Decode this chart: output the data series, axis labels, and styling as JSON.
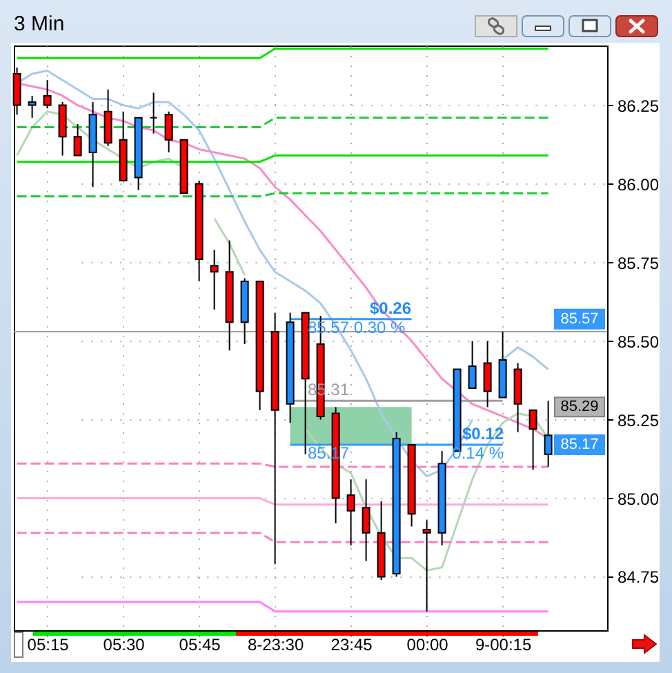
{
  "chart_data": {
    "type": "candlestick",
    "title": "3 Min",
    "categories": [
      null,
      null,
      "05:15",
      null,
      null,
      null,
      null,
      "05:30",
      null,
      null,
      null,
      null,
      "05:45",
      null,
      null,
      null,
      null,
      "8-23:30",
      null,
      null,
      null,
      null,
      "23:45",
      null,
      null,
      null,
      null,
      "00:00",
      null,
      null,
      null,
      null,
      "9-00:15",
      null,
      null,
      null
    ],
    "ohlc": [
      [
        86.35,
        86.37,
        86.22,
        86.25
      ],
      [
        86.25,
        86.28,
        86.21,
        86.26
      ],
      [
        86.28,
        86.33,
        86.24,
        86.25
      ],
      [
        86.25,
        86.26,
        86.09,
        86.15
      ],
      [
        86.15,
        86.19,
        86.09,
        86.09
      ],
      [
        86.1,
        86.26,
        85.99,
        86.22
      ],
      [
        86.23,
        86.3,
        86.12,
        86.13
      ],
      [
        86.14,
        86.23,
        86.01,
        86.01
      ],
      [
        86.02,
        86.21,
        85.98,
        86.21
      ],
      [
        86.21,
        86.29,
        86.16,
        86.21
      ],
      [
        86.22,
        86.23,
        86.1,
        86.14
      ],
      [
        86.14,
        86.14,
        85.97,
        85.97
      ],
      [
        86.0,
        86.01,
        85.69,
        85.76
      ],
      [
        85.74,
        85.79,
        85.6,
        85.72
      ],
      [
        85.72,
        85.82,
        85.47,
        85.56
      ],
      [
        85.56,
        85.7,
        85.49,
        85.69
      ],
      [
        85.69,
        85.69,
        85.28,
        85.34
      ],
      [
        85.53,
        85.59,
        84.79,
        85.28
      ],
      [
        85.3,
        85.59,
        85.24,
        85.56
      ],
      [
        85.59,
        85.59,
        85.14,
        85.38
      ],
      [
        85.49,
        85.58,
        85.25,
        85.26
      ],
      [
        85.27,
        85.29,
        84.92,
        85.0
      ],
      [
        85.01,
        85.06,
        84.85,
        84.96
      ],
      [
        84.97,
        85.06,
        84.8,
        84.89
      ],
      [
        84.89,
        84.99,
        84.74,
        84.75
      ],
      [
        84.76,
        85.21,
        84.75,
        85.19
      ],
      [
        85.17,
        85.17,
        84.91,
        84.95
      ],
      [
        84.9,
        84.93,
        84.64,
        84.89
      ],
      [
        84.89,
        85.15,
        84.85,
        85.11
      ],
      [
        85.15,
        85.41,
        85.15,
        85.41
      ],
      [
        85.35,
        85.5,
        85.35,
        85.42
      ],
      [
        85.43,
        85.5,
        85.29,
        85.34
      ],
      [
        85.32,
        85.53,
        85.32,
        85.44
      ],
      [
        85.41,
        85.43,
        85.21,
        85.3
      ],
      [
        85.28,
        85.28,
        85.09,
        85.22
      ],
      [
        85.14,
        85.31,
        85.1,
        85.2
      ]
    ],
    "colors": [
      "#ff0000",
      "#1e8cff",
      "#ff0000",
      "#ff0000",
      "#ff0000",
      "#1e8cff",
      "#ff0000",
      "#ff0000",
      "#1e8cff",
      "#000000",
      "#ff0000",
      "#ff0000",
      "#ff0000",
      "#ff0000",
      "#ff0000",
      "#1e8cff",
      "#ff0000",
      "#ff0000",
      "#1e8cff",
      "#ff0000",
      "#ff0000",
      "#ff0000",
      "#ff0000",
      "#ff0000",
      "#ff0000",
      "#1e8cff",
      "#ff0000",
      "#ff0000",
      "#1e8cff",
      "#1e8cff",
      "#1e8cff",
      "#ff0000",
      "#1e8cff",
      "#ff0000",
      "#ff0000",
      "#1e8cff"
    ],
    "series": [
      {
        "type": "line",
        "color": "#8fd1a9",
        "values": [
          null,
          null,
          null,
          null,
          null,
          null,
          null,
          null,
          null,
          null,
          null,
          null,
          null,
          null,
          null,
          null,
          null,
          null,
          null,
          null,
          null,
          null,
          null,
          null,
          null,
          null,
          null,
          null,
          null,
          null,
          null,
          null,
          null,
          null,
          null,
          null
        ],
        "lower": [
          null,
          null,
          null,
          null,
          null,
          null,
          null,
          null,
          null,
          null,
          null,
          null,
          null,
          null,
          null,
          null,
          null,
          null,
          85.17,
          85.17,
          85.17,
          85.17,
          85.17,
          85.17,
          85.17,
          85.17,
          85.17,
          null,
          null,
          null,
          null,
          null,
          null,
          null,
          null,
          null
        ],
        "upper": [
          null,
          null,
          null,
          null,
          null,
          null,
          null,
          null,
          null,
          null,
          null,
          null,
          null,
          null,
          null,
          null,
          null,
          null,
          85.29,
          85.29,
          85.29,
          85.29,
          85.29,
          85.29,
          85.29,
          85.29,
          85.29,
          null,
          null,
          null,
          null,
          null,
          null,
          null,
          null,
          null
        ]
      },
      {
        "type": "line",
        "color": "#a8c8ee",
        "values": [
          86.32,
          86.35,
          86.36,
          86.33,
          86.3,
          86.27,
          86.27,
          86.25,
          86.24,
          86.26,
          86.26,
          86.22,
          86.17,
          86.08,
          85.98,
          85.88,
          85.79,
          85.72,
          85.69,
          85.66,
          85.62,
          85.55,
          85.47,
          85.38,
          85.27,
          85.19,
          85.12,
          85.07,
          85.09,
          85.16,
          85.25,
          null,
          85.44,
          85.48,
          85.45,
          85.41
        ]
      },
      {
        "type": "line",
        "color": "#f98cc8",
        "values": [
          86.32,
          86.31,
          86.3,
          86.28,
          86.25,
          86.23,
          86.21,
          86.2,
          86.18,
          86.17,
          86.14,
          86.13,
          86.11,
          86.1,
          86.09,
          86.08,
          86.05,
          85.99,
          85.95,
          85.9,
          85.85,
          85.79,
          85.73,
          85.67,
          85.6,
          85.55,
          85.5,
          85.44,
          85.38,
          85.34,
          85.3,
          85.28,
          85.26,
          85.24,
          85.22,
          85.19
        ]
      },
      {
        "type": "line",
        "color": "#b4d8b4",
        "values": [
          86.09,
          86.18,
          86.23,
          86.22,
          86.18,
          86.14,
          86.11,
          86.08,
          86.05,
          86.07,
          86.08,
          86.05,
          null,
          85.89,
          85.81,
          85.71,
          null,
          null,
          null,
          85.22,
          85.16,
          85.11,
          85.08,
          84.97,
          84.88,
          84.81,
          84.81,
          84.77,
          84.78,
          84.92,
          85.06,
          85.17,
          85.24,
          85.27,
          85.26,
          85.19
        ]
      },
      {
        "type": "line",
        "color": "#00e600",
        "values": [
          86.4,
          86.4,
          86.4,
          86.4,
          86.4,
          86.4,
          86.4,
          86.4,
          86.4,
          86.4,
          86.4,
          86.4,
          86.4,
          86.4,
          86.4,
          86.4,
          86.4,
          86.43,
          86.43,
          86.43,
          86.43,
          86.43,
          86.43,
          86.43,
          86.43,
          86.43,
          86.43,
          86.43,
          86.43,
          86.43,
          86.43,
          86.43,
          86.43,
          86.43,
          86.43,
          86.43
        ]
      },
      {
        "type": "line",
        "color": "#1fc83c",
        "line_style": "dashed",
        "values": [
          86.18,
          86.18,
          86.18,
          86.18,
          86.18,
          86.18,
          86.18,
          86.18,
          86.18,
          86.18,
          86.18,
          86.18,
          86.18,
          86.18,
          86.18,
          86.18,
          86.18,
          86.21,
          86.21,
          86.21,
          86.21,
          86.21,
          86.21,
          86.21,
          86.21,
          86.21,
          86.21,
          86.21,
          86.21,
          86.21,
          86.21,
          86.21,
          86.21,
          86.21,
          86.21,
          86.21
        ]
      },
      {
        "type": "line",
        "color": "#00e600",
        "values": [
          86.07,
          86.07,
          86.07,
          86.07,
          86.07,
          86.07,
          86.07,
          86.07,
          86.07,
          86.07,
          86.07,
          86.07,
          86.07,
          86.07,
          86.07,
          86.07,
          86.07,
          86.09,
          86.09,
          86.09,
          86.09,
          86.09,
          86.09,
          86.09,
          86.09,
          86.09,
          86.09,
          86.09,
          86.09,
          86.09,
          86.09,
          86.09,
          86.09,
          86.09,
          86.09,
          86.09
        ]
      },
      {
        "type": "line",
        "color": "#1fc83c",
        "line_style": "dashed",
        "values": [
          85.96,
          85.96,
          85.96,
          85.96,
          85.96,
          85.96,
          85.96,
          85.96,
          85.96,
          85.96,
          85.96,
          85.96,
          85.96,
          85.96,
          85.96,
          85.96,
          85.96,
          85.97,
          85.97,
          85.97,
          85.97,
          85.97,
          85.97,
          85.97,
          85.97,
          85.97,
          85.97,
          85.97,
          85.97,
          85.97,
          85.97,
          85.97,
          85.97,
          85.97,
          85.97,
          85.97
        ]
      },
      {
        "type": "line",
        "color": "#ff7fc0",
        "line_style": "dashed",
        "values": [
          85.11,
          85.11,
          85.11,
          85.11,
          85.11,
          85.11,
          85.11,
          85.11,
          85.11,
          85.11,
          85.11,
          85.11,
          85.11,
          85.11,
          85.11,
          85.11,
          85.11,
          85.1,
          85.1,
          85.1,
          85.1,
          85.1,
          85.1,
          85.1,
          85.1,
          85.1,
          85.1,
          85.1,
          85.1,
          85.1,
          85.1,
          85.1,
          85.1,
          85.1,
          85.1,
          85.1
        ]
      },
      {
        "type": "line",
        "color": "#ffaad6",
        "values": [
          85.0,
          85.0,
          85.0,
          85.0,
          85.0,
          85.0,
          85.0,
          85.0,
          85.0,
          85.0,
          85.0,
          85.0,
          85.0,
          85.0,
          85.0,
          85.0,
          85.0,
          84.98,
          84.98,
          84.98,
          84.98,
          84.98,
          84.98,
          84.98,
          84.98,
          84.98,
          84.98,
          84.98,
          84.98,
          84.98,
          84.98,
          84.98,
          84.98,
          84.98,
          84.98,
          84.98
        ]
      },
      {
        "type": "line",
        "color": "#ff7fc0",
        "line_style": "dashed",
        "values": [
          84.89,
          84.89,
          84.89,
          84.89,
          84.89,
          84.89,
          84.89,
          84.89,
          84.89,
          84.89,
          84.89,
          84.89,
          84.89,
          84.89,
          84.89,
          84.89,
          84.89,
          84.86,
          84.86,
          84.86,
          84.86,
          84.86,
          84.86,
          84.86,
          84.86,
          84.86,
          84.86,
          84.86,
          84.86,
          84.86,
          84.86,
          84.86,
          84.86,
          84.86,
          84.86,
          84.86
        ]
      },
      {
        "type": "line",
        "color": "#ff80ff",
        "values": [
          84.67,
          84.67,
          84.67,
          84.67,
          84.67,
          84.67,
          84.67,
          84.67,
          84.67,
          84.67,
          84.67,
          84.67,
          84.67,
          84.67,
          84.67,
          84.67,
          84.67,
          84.64,
          84.64,
          84.64,
          84.64,
          84.64,
          84.64,
          84.64,
          84.64,
          84.64,
          84.64,
          84.64,
          84.64,
          84.64,
          84.64,
          84.64,
          84.64,
          84.64,
          84.64,
          84.64
        ]
      },
      {
        "type": "line",
        "color": "#3399ff",
        "values": [
          null,
          null,
          null,
          null,
          null,
          null,
          null,
          null,
          null,
          null,
          null,
          null,
          null,
          null,
          null,
          null,
          null,
          null,
          85.57,
          85.57,
          85.57,
          85.57,
          85.57,
          85.57,
          85.57,
          85.57,
          85.57,
          null,
          null,
          null,
          null,
          null,
          null,
          null,
          null,
          null
        ]
      },
      {
        "type": "line",
        "color": "#a0a0a0",
        "values": [
          null,
          null,
          null,
          null,
          null,
          null,
          null,
          null,
          null,
          null,
          null,
          null,
          null,
          null,
          null,
          null,
          null,
          null,
          85.31,
          85.31,
          85.31,
          85.31,
          85.31,
          85.31,
          85.31,
          85.31,
          85.31,
          85.31,
          85.31,
          85.31,
          85.31,
          85.31,
          85.31,
          null,
          null,
          null
        ]
      },
      {
        "type": "line",
        "color": "#3399ff",
        "values": [
          null,
          null,
          null,
          null,
          null,
          null,
          null,
          null,
          null,
          null,
          null,
          null,
          null,
          null,
          null,
          null,
          null,
          null,
          85.17,
          85.17,
          85.17,
          85.17,
          85.17,
          85.17,
          85.17,
          85.17,
          85.17,
          85.17,
          85.17,
          85.17,
          85.17,
          85.17,
          85.17,
          null,
          null,
          null
        ]
      }
    ],
    "ref_lines": [
      {
        "axis": "y",
        "value": 85.53,
        "color": "#a0a0a0"
      }
    ],
    "annotations": [
      {
        "text": "$0.26",
        "y": 85.57
      },
      {
        "text": "85.57 0.30 %",
        "y": 85.57
      },
      {
        "text": "85.31",
        "y": 85.31
      },
      {
        "text": "85.17",
        "y": 85.17
      },
      {
        "text": "$0.12",
        "y": 85.17
      },
      {
        "text": "0.14 %",
        "y": 85.17
      },
      {
        "text": "85.57",
        "y": 85.57
      },
      {
        "text": "85.29",
        "y": 85.29
      },
      {
        "text": "85.17",
        "y": 85.17
      }
    ],
    "ylim": [
      84.58,
      86.44
    ],
    "yticks": [
      84.75,
      {
        "value": 85,
        "label": "85.00"
      },
      85.25,
      {
        "value": 85.5,
        "label": "85.50"
      },
      85.75,
      {
        "value": 86,
        "label": "86.00"
      },
      86.25
    ],
    "grid": true
  }
}
